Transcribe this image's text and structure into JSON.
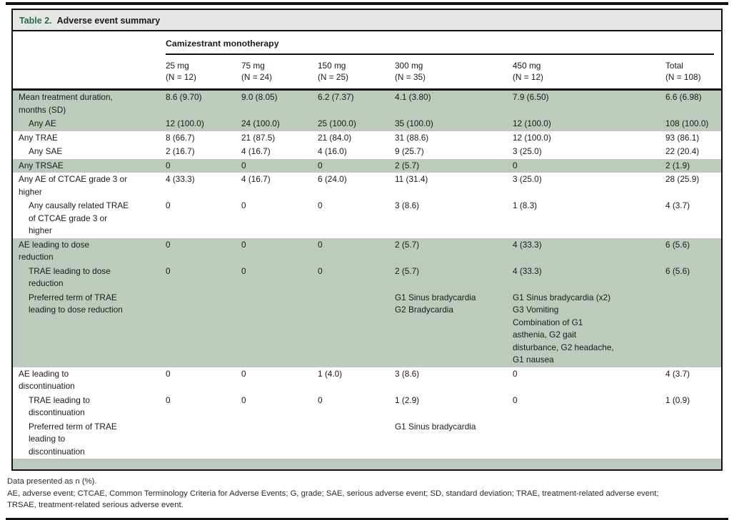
{
  "colors": {
    "shaded_row": "#bccbbd",
    "title_bar_bg": "#e5e7e4",
    "title_accent": "#2b6b49",
    "rule": "#111111"
  },
  "table": {
    "title_label": "Table 2.",
    "title_text": "Adverse event summary",
    "group_header": "Camizestrant monotherapy",
    "columns": [
      {
        "dose": "25 mg",
        "n": "(N = 12)"
      },
      {
        "dose": "75 mg",
        "n": "(N = 24)"
      },
      {
        "dose": "150 mg",
        "n": "(N = 25)"
      },
      {
        "dose": "300 mg",
        "n": "(N = 35)"
      },
      {
        "dose": "450 mg",
        "n": "(N = 12)"
      },
      {
        "dose": "Total",
        "n": "(N = 108)"
      }
    ],
    "rows": [
      {
        "label": "Mean treatment duration,\nmonths (SD)",
        "indent": 0,
        "shaded": true,
        "values": [
          "8.6 (9.70)",
          "9.0 (8.05)",
          "6.2 (7.37)",
          "4.1 (3.80)",
          "7.9 (6.50)",
          "6.6 (6.98)"
        ]
      },
      {
        "label": "Any AE",
        "indent": 1,
        "shaded": true,
        "values": [
          "12 (100.0)",
          "24 (100.0)",
          "25 (100.0)",
          "35 (100.0)",
          "12 (100.0)",
          "108 (100.0)"
        ]
      },
      {
        "label": "Any TRAE",
        "indent": 0,
        "shaded": false,
        "values": [
          "8 (66.7)",
          "21 (87.5)",
          "21 (84.0)",
          "31 (88.6)",
          "12 (100.0)",
          "93 (86.1)"
        ]
      },
      {
        "label": "Any SAE",
        "indent": 1,
        "shaded": false,
        "values": [
          "2 (16.7)",
          "4 (16.7)",
          "4 (16.0)",
          "9 (25.7)",
          "3 (25.0)",
          "22 (20.4)"
        ]
      },
      {
        "label": "Any TRSAE",
        "indent": 0,
        "shaded": true,
        "values": [
          "0",
          "0",
          "0",
          "2 (5.7)",
          "0",
          "2 (1.9)"
        ]
      },
      {
        "label": "Any AE of CTCAE grade 3 or\nhigher",
        "indent": 0,
        "shaded": false,
        "values": [
          "4 (33.3)",
          "4 (16.7)",
          "6 (24.0)",
          "11 (31.4)",
          "3 (25.0)",
          "28 (25.9)"
        ]
      },
      {
        "label": "Any causally related TRAE\nof CTCAE grade 3 or\nhigher",
        "indent": 1,
        "shaded": false,
        "values": [
          "0",
          "0",
          "0",
          "3 (8.6)",
          "1 (8.3)",
          "4 (3.7)"
        ]
      },
      {
        "label": "AE leading to dose\nreduction",
        "indent": 0,
        "shaded": true,
        "values": [
          "0",
          "0",
          "0",
          "2 (5.7)",
          "4 (33.3)",
          "6 (5.6)"
        ]
      },
      {
        "label": "TRAE leading to dose\nreduction",
        "indent": 1,
        "shaded": true,
        "values": [
          "0",
          "0",
          "0",
          "2 (5.7)",
          "4 (33.3)",
          "6 (5.6)"
        ]
      },
      {
        "label": "Preferred term of TRAE\nleading to dose reduction",
        "indent": 1,
        "shaded": true,
        "values": [
          "",
          "",
          "",
          "G1 Sinus bradycardia\nG2 Bradycardia",
          "G1 Sinus bradycardia (x2)\nG3 Vomiting\nCombination of G1\nasthenia, G2 gait\ndisturbance, G2 headache,\nG1 nausea",
          ""
        ]
      },
      {
        "label": "AE leading to\ndiscontinuation",
        "indent": 0,
        "shaded": false,
        "values": [
          "0",
          "0",
          "1 (4.0)",
          "3 (8.6)",
          "0",
          "4 (3.7)"
        ]
      },
      {
        "label": "TRAE leading to\ndiscontinuation",
        "indent": 1,
        "shaded": false,
        "values": [
          "0",
          "0",
          "0",
          "1 (2.9)",
          "0",
          "1 (0.9)"
        ]
      },
      {
        "label": "Preferred term of TRAE\nleading to\ndiscontinuation",
        "indent": 1,
        "shaded": false,
        "values": [
          "",
          "",
          "",
          "G1 Sinus bradycardia",
          "",
          ""
        ]
      },
      {
        "label": "",
        "indent": 0,
        "shaded": true,
        "spacer": true,
        "values": [
          "",
          "",
          "",
          "",
          "",
          ""
        ]
      }
    ],
    "footnote_lines": [
      "Data presented as n (%).",
      "AE, adverse event; CTCAE, Common Terminology Criteria for Adverse Events; G, grade; SAE, serious adverse event; SD, standard deviation; TRAE, treatment-related adverse event;",
      "TRSAE, treatment-related serious adverse event."
    ]
  }
}
